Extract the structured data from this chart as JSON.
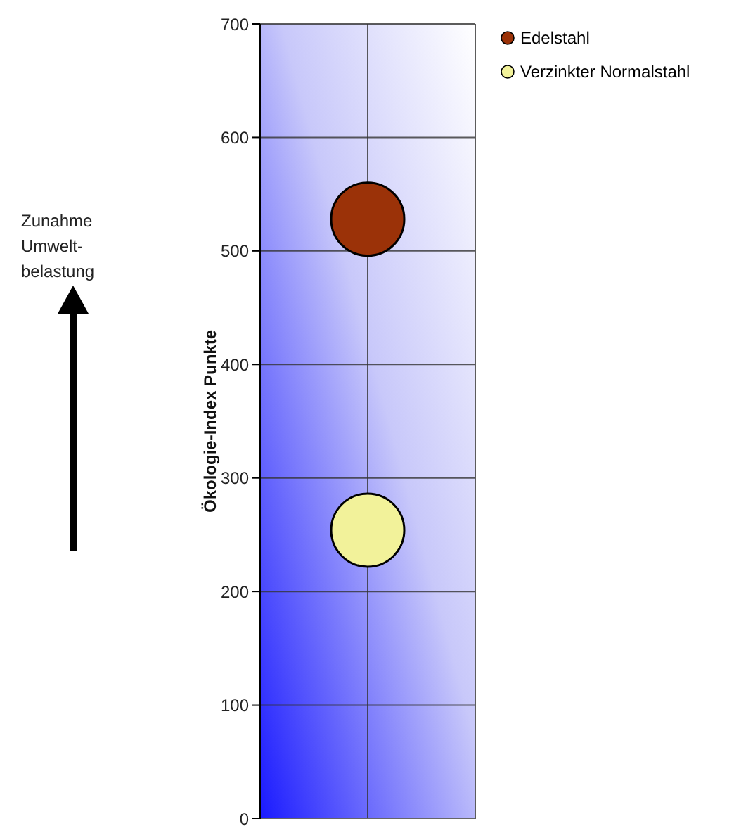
{
  "chart_data": {
    "type": "scatter",
    "ylabel": "Ökologie-Index Punkte",
    "categories": [
      null
    ],
    "series": [
      {
        "name": "Edelstahl",
        "color": "#9b3208",
        "values": [
          528
        ]
      },
      {
        "name": "Verzinkter Normalstahl",
        "color": "#f2f29a",
        "values": [
          254
        ]
      }
    ],
    "ylim": [
      0,
      700
    ],
    "yticks": [
      0,
      100,
      200,
      300,
      400,
      500,
      600,
      700
    ],
    "grid": true,
    "legend": "top right",
    "marker": "circle",
    "annotations": [
      "Zunahme Umwelt-belastung"
    ]
  }
}
